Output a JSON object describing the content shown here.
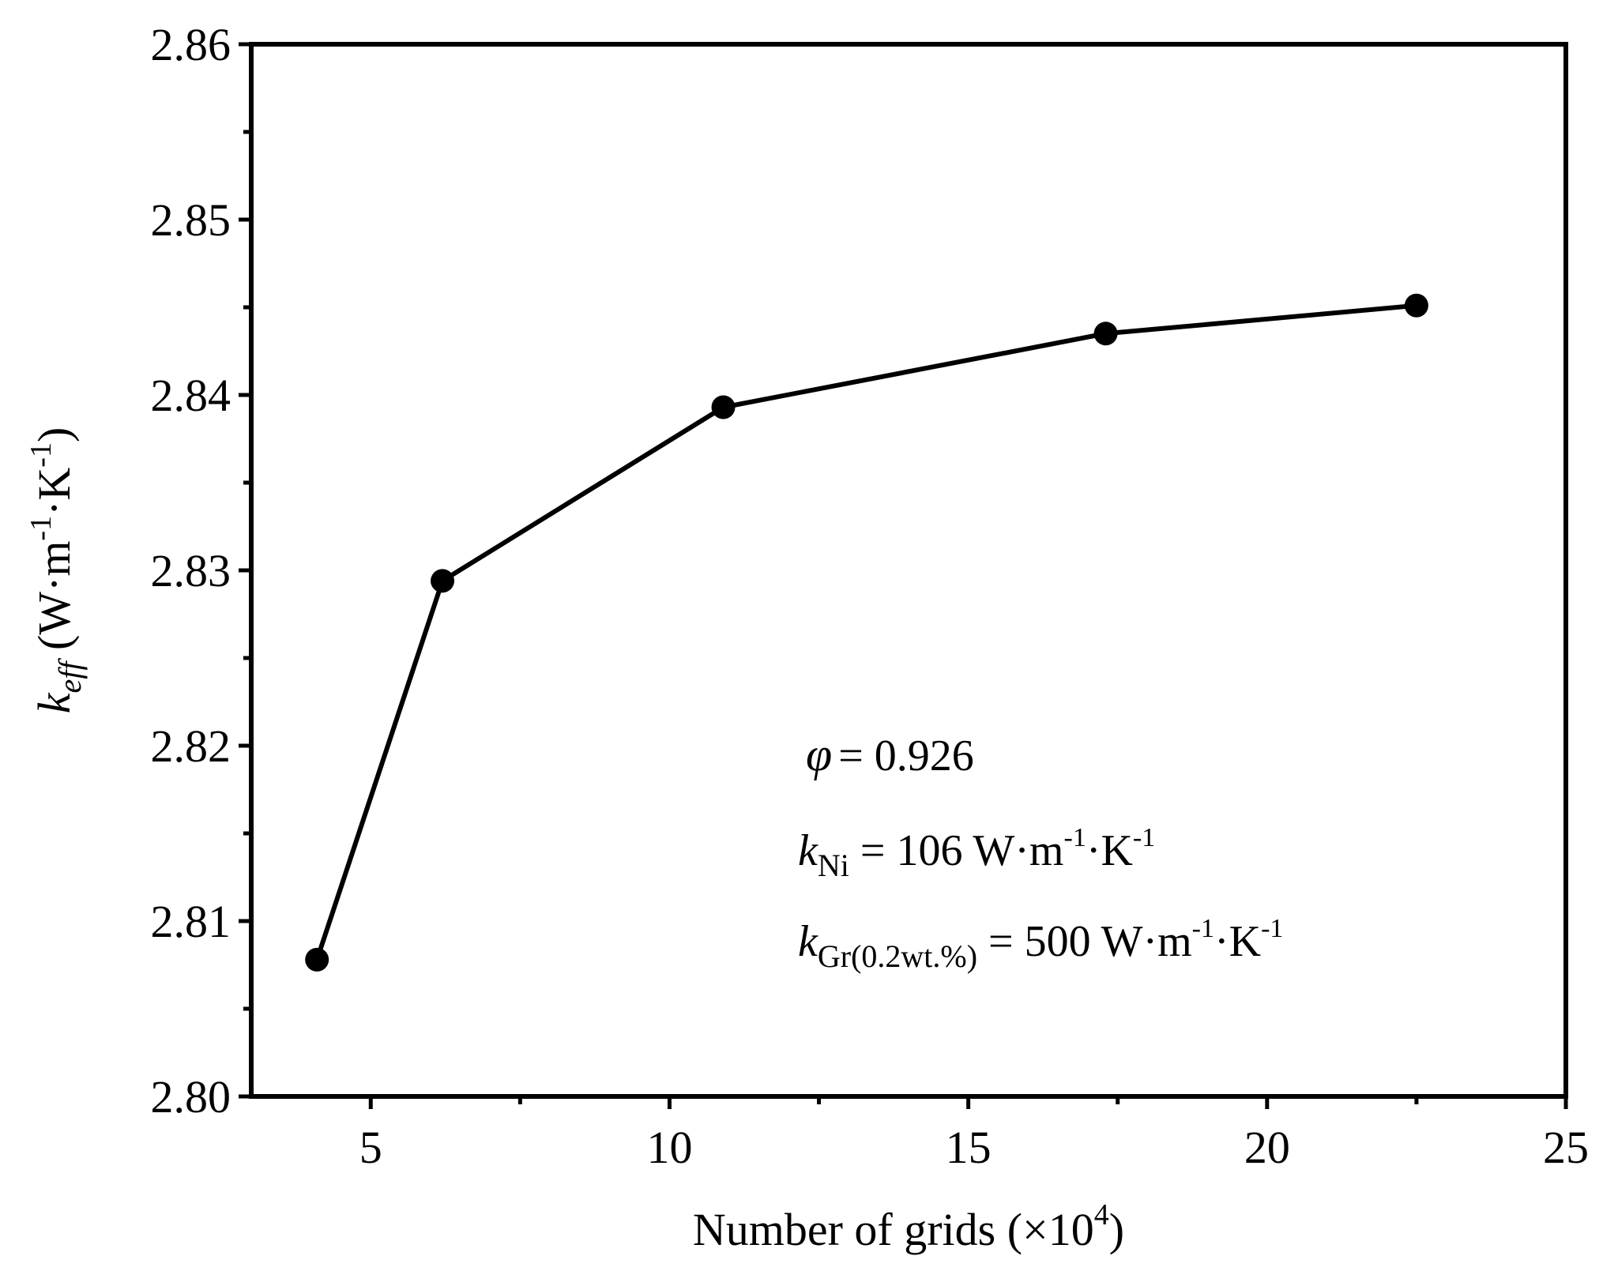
{
  "chart_data": {
    "type": "line",
    "title": "",
    "xlabel": "Number of grids (×10",
    "xlabel_sup": "4",
    "xlabel_close": ")",
    "ylabel": {
      "k": "k",
      "sub": "eff",
      "open": " (W·m",
      "sup1": "-1",
      "mid": "·K",
      "sup2": "-1",
      "close": ")"
    },
    "xlim": [
      3,
      25
    ],
    "ylim": [
      2.8,
      2.86
    ],
    "x_ticks": [
      5,
      10,
      15,
      20,
      25
    ],
    "y_ticks": [
      2.8,
      2.81,
      2.82,
      2.83,
      2.84,
      2.85,
      2.86
    ],
    "x_tick_labels": [
      "5",
      "10",
      "15",
      "20",
      "25"
    ],
    "y_tick_labels": [
      "2.80",
      "2.81",
      "2.82",
      "2.83",
      "2.84",
      "2.85",
      "2.86"
    ],
    "grid": false,
    "legend": "none",
    "series": [
      {
        "x": [
          4.1,
          6.2,
          10.9,
          17.3,
          22.5
        ],
        "y": [
          2.8078,
          2.8294,
          2.8393,
          2.8435,
          2.8451
        ],
        "marker": "circle",
        "color": "#000000"
      }
    ],
    "annotations": {
      "phi": {
        "symbol": "φ",
        "eq": "= 0.926"
      },
      "kni": {
        "k": "k",
        "sub": "Ni",
        "text": " = 106 W·m",
        "sup1": "-1",
        "mid": "·K",
        "sup2": "-1"
      },
      "kgr": {
        "k": "k",
        "sub": "Gr(0.2wt.%)",
        "text": " = 500 W·m",
        "sup1": "-1",
        "mid": "·K",
        "sup2": "-1"
      }
    }
  }
}
